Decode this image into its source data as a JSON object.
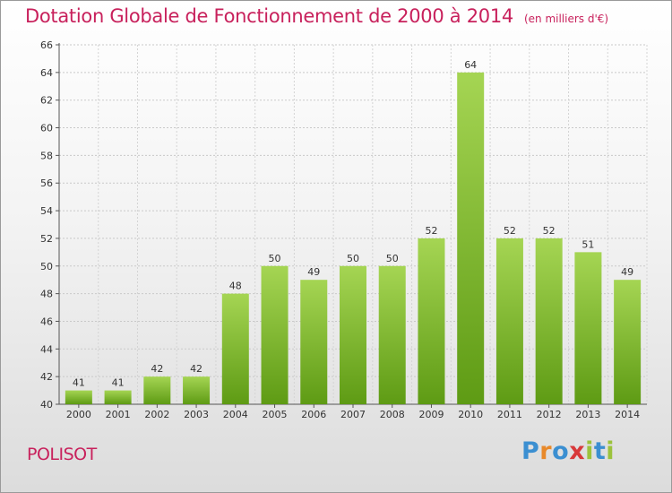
{
  "title": "Dotation Globale de Fonctionnement de 2000 à 2014",
  "subtitle": "(en milliers d'€)",
  "commune": "POLISOT",
  "logo": {
    "letters": [
      "P",
      "r",
      "o",
      "x",
      "i",
      "t",
      "i"
    ],
    "colors": [
      "#3b8fd1",
      "#e8892a",
      "#3b8fd1",
      "#d8393a",
      "#9cc23c",
      "#3b8fd1",
      "#9cc23c"
    ]
  },
  "colors": {
    "bar_top": "#a5d553",
    "bar_bottom": "#5e9b14",
    "title": "#c8215c"
  },
  "chart_data": {
    "type": "bar",
    "categories": [
      "2000",
      "2001",
      "2002",
      "2003",
      "2004",
      "2005",
      "2006",
      "2007",
      "2008",
      "2009",
      "2010",
      "2011",
      "2012",
      "2013",
      "2014"
    ],
    "values": [
      41,
      41,
      42,
      42,
      48,
      50,
      49,
      50,
      50,
      52,
      64,
      52,
      52,
      51,
      49
    ],
    "title": "Dotation Globale de Fonctionnement de 2000 à 2014",
    "ylabel": "",
    "xlabel": "",
    "ylim": [
      40,
      66
    ],
    "yticks": [
      40,
      42,
      44,
      46,
      48,
      50,
      52,
      54,
      56,
      58,
      60,
      62,
      64,
      66
    ],
    "grid": true
  }
}
